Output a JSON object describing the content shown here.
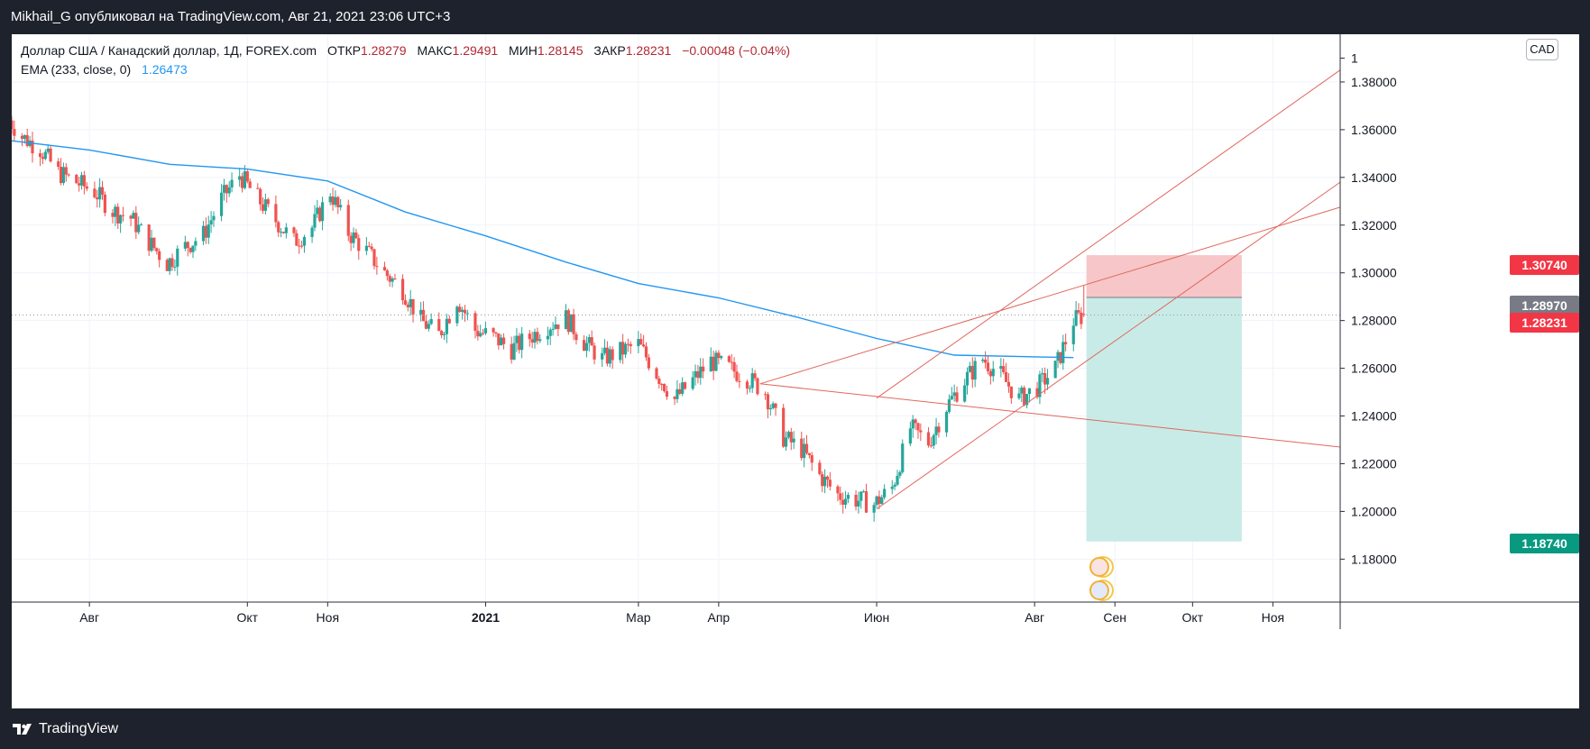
{
  "header": {
    "publish_text": "Mikhail_G опубликовал на TradingView.com, Авг 21, 2021 23:06 UTC+3"
  },
  "legend": {
    "symbol": "Доллар США / Канадский доллар, 1Д, FOREX.com",
    "open_label": "ОТКР",
    "open": "1.28279",
    "high_label": "МАКС",
    "high": "1.29491",
    "low_label": "МИН",
    "low": "1.28145",
    "close_label": "ЗАКР",
    "close": "1.28231",
    "change": "−0.00048 (−0.04%)",
    "ema_label": "EMA (233, close, 0)",
    "ema_value": "1.26473"
  },
  "currency_button": "CAD",
  "price_labels": [
    {
      "text": "1.30740",
      "color": "#f23645"
    },
    {
      "text": "1.28970",
      "color": "#787b86"
    },
    {
      "text": "1.28231",
      "color": "#f23645"
    },
    {
      "text": "1.18740",
      "color": "#089981"
    }
  ],
  "footer": {
    "brand": "TradingView"
  },
  "colors": {
    "up": "#26a69a",
    "down": "#ef5350",
    "ema": "#2196f3",
    "trend": "#e0685e",
    "stop_zone": "#f7c6c8",
    "target_zone": "#c8ebe7"
  },
  "chart_data": {
    "type": "candlestick",
    "title": "Доллар США / Канадский доллар, 1Д, FOREX.com",
    "x_tick_labels": [
      "Авг",
      "Окт",
      "Ноя",
      "2021",
      "Мар",
      "Апр",
      "Июн",
      "Авг",
      "Сен",
      "Окт",
      "Ноя"
    ],
    "y_tick_labels": [
      "1",
      "1.38000",
      "1.36000",
      "1.34000",
      "1.32000",
      "1.30000",
      "1.28000",
      "1.26000",
      "1.24000",
      "1.22000",
      "1.20000",
      "1.18000"
    ],
    "y_ticks": [
      1.38,
      1.36,
      1.34,
      1.32,
      1.3,
      1.28,
      1.26,
      1.24,
      1.22,
      1.2,
      1.18
    ],
    "ylim": [
      1.162,
      1.4
    ],
    "x_range": [
      "2020-07-02",
      "2021-11-27"
    ],
    "tick_dates": [
      "2020-08-01",
      "2020-10-01",
      "2020-11-01",
      "2021-01-01",
      "2021-03-01",
      "2021-04-01",
      "2021-06-01",
      "2021-08-01",
      "2021-09-01",
      "2021-10-01",
      "2021-11-01"
    ],
    "price_path": [
      [
        "2020-07-01",
        1.364
      ],
      [
        "2020-07-06",
        1.357
      ],
      [
        "2020-07-13",
        1.352
      ],
      [
        "2020-07-20",
        1.342
      ],
      [
        "2020-07-27",
        1.338
      ],
      [
        "2020-08-03",
        1.334
      ],
      [
        "2020-08-10",
        1.326
      ],
      [
        "2020-08-17",
        1.323
      ],
      [
        "2020-08-24",
        1.313
      ],
      [
        "2020-08-31",
        1.304
      ],
      [
        "2020-09-07",
        1.311
      ],
      [
        "2020-09-14",
        1.316
      ],
      [
        "2020-09-21",
        1.331
      ],
      [
        "2020-09-28",
        1.341
      ],
      [
        "2020-10-05",
        1.331
      ],
      [
        "2020-10-12",
        1.322
      ],
      [
        "2020-10-19",
        1.313
      ],
      [
        "2020-10-26",
        1.319
      ],
      [
        "2020-11-02",
        1.334
      ],
      [
        "2020-11-09",
        1.317
      ],
      [
        "2020-11-16",
        1.309
      ],
      [
        "2020-11-23",
        1.3
      ],
      [
        "2020-11-30",
        1.293
      ],
      [
        "2020-12-07",
        1.28
      ],
      [
        "2020-12-14",
        1.274
      ],
      [
        "2020-12-21",
        1.289
      ],
      [
        "2020-12-28",
        1.276
      ],
      [
        "2021-01-04",
        1.273
      ],
      [
        "2021-01-11",
        1.268
      ],
      [
        "2021-01-18",
        1.273
      ],
      [
        "2021-01-25",
        1.278
      ],
      [
        "2021-02-01",
        1.281
      ],
      [
        "2021-02-08",
        1.271
      ],
      [
        "2021-02-15",
        1.264
      ],
      [
        "2021-02-22",
        1.267
      ],
      [
        "2021-03-01",
        1.27
      ],
      [
        "2021-03-08",
        1.258
      ],
      [
        "2021-03-15",
        1.247
      ],
      [
        "2021-03-22",
        1.255
      ],
      [
        "2021-03-29",
        1.263
      ],
      [
        "2021-04-05",
        1.26
      ],
      [
        "2021-04-12",
        1.256
      ],
      [
        "2021-04-19",
        1.25
      ],
      [
        "2021-04-26",
        1.231
      ],
      [
        "2021-05-03",
        1.226
      ],
      [
        "2021-05-10",
        1.215
      ],
      [
        "2021-05-17",
        1.207
      ],
      [
        "2021-05-24",
        1.205
      ],
      [
        "2021-05-31",
        1.203
      ],
      [
        "2021-06-07",
        1.21
      ],
      [
        "2021-06-14",
        1.235
      ],
      [
        "2021-06-21",
        1.229
      ],
      [
        "2021-06-28",
        1.244
      ],
      [
        "2021-07-05",
        1.255
      ],
      [
        "2021-07-12",
        1.264
      ],
      [
        "2021-07-19",
        1.257
      ],
      [
        "2021-07-26",
        1.247
      ],
      [
        "2021-08-02",
        1.252
      ],
      [
        "2021-08-09",
        1.26
      ],
      [
        "2021-08-16",
        1.28
      ],
      [
        "2021-08-20",
        1.2823
      ]
    ],
    "ema_233": [
      [
        "2020-07-01",
        1.3555
      ],
      [
        "2020-08-01",
        1.3515
      ],
      [
        "2020-09-01",
        1.3455
      ],
      [
        "2020-10-01",
        1.3435
      ],
      [
        "2020-11-01",
        1.3385
      ],
      [
        "2020-12-01",
        1.3255
      ],
      [
        "2021-01-01",
        1.3155
      ],
      [
        "2021-02-01",
        1.3045
      ],
      [
        "2021-03-01",
        1.2955
      ],
      [
        "2021-04-01",
        1.2895
      ],
      [
        "2021-05-01",
        1.2815
      ],
      [
        "2021-06-01",
        1.2725
      ],
      [
        "2021-07-01",
        1.2655
      ],
      [
        "2021-08-01",
        1.2648
      ],
      [
        "2021-08-16",
        1.2645
      ]
    ],
    "trend_lines": [
      {
        "from": [
          "2021-04-17",
          1.2535
        ],
        "to": [
          "2021-11-27",
          1.227
        ]
      },
      {
        "from": [
          "2021-04-17",
          1.2535
        ],
        "to": [
          "2021-11-27",
          1.3275
        ]
      },
      {
        "from": [
          "2021-06-01",
          1.201
        ],
        "to": [
          "2021-11-27",
          1.338
        ]
      },
      {
        "from": [
          "2021-06-01",
          1.2475
        ],
        "to": [
          "2021-11-27",
          1.385
        ]
      }
    ],
    "position": {
      "entry": 1.2897,
      "stop": 1.3074,
      "target": 1.1874,
      "start": "2021-08-21",
      "end": "2021-10-20"
    },
    "last_close": 1.28231
  }
}
